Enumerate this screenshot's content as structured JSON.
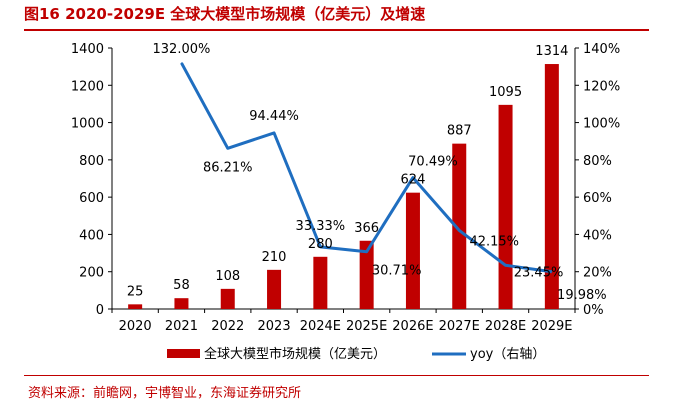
{
  "figure": {
    "title": "图16  2020-2029E 全球大模型市场规模（亿美元）及增速",
    "source": "资料来源：前瞻网，宇博智业，东海证券研究所"
  },
  "colors": {
    "title": "#c00000",
    "bar": "#c00000",
    "line": "#1f6ec0",
    "axis": "#000000",
    "text": "#000000"
  },
  "chart_data": {
    "type": "bar",
    "title": "2020-2029E 全球大模型市场规模（亿美元）及增速",
    "categories": [
      "2020",
      "2021",
      "2022",
      "2023",
      "2024E",
      "2025E",
      "2026E",
      "2027E",
      "2028E",
      "2029E"
    ],
    "series": [
      {
        "name": "全球大模型市场规模（亿美元）",
        "type": "bar",
        "axis": "left",
        "values": [
          25,
          58,
          108,
          210,
          280,
          366,
          624,
          887,
          1095,
          1314
        ],
        "labels": [
          "25",
          "58",
          "108",
          "210",
          "280",
          "366",
          "624",
          "887",
          "1095",
          "1314"
        ]
      },
      {
        "name": "yoy（右轴）",
        "type": "line",
        "axis": "right",
        "values": [
          null,
          132.0,
          86.21,
          94.44,
          33.33,
          30.71,
          70.49,
          42.15,
          23.45,
          19.98
        ],
        "labels": [
          "",
          "132.00%",
          "86.21%",
          "94.44%",
          "33.33%",
          "30.71%",
          "70.49%",
          "42.15%",
          "23.45%",
          "19.98%"
        ]
      }
    ],
    "y_left": {
      "min": 0,
      "max": 1400,
      "ticks": [
        0,
        200,
        400,
        600,
        800,
        1000,
        1200,
        1400
      ],
      "tick_labels": [
        "0",
        "200",
        "400",
        "600",
        "800",
        "1000",
        "1200",
        "1400"
      ]
    },
    "y_right": {
      "min": 0,
      "max": 140,
      "ticks": [
        0,
        20,
        40,
        60,
        80,
        100,
        120,
        140
      ],
      "tick_labels": [
        "0%",
        "20%",
        "40%",
        "60%",
        "80%",
        "100%",
        "120%",
        "140%"
      ]
    },
    "legend": [
      "全球大模型市场规模（亿美元）",
      "yoy（右轴）"
    ],
    "legend_position": "bottom",
    "grid": false
  }
}
